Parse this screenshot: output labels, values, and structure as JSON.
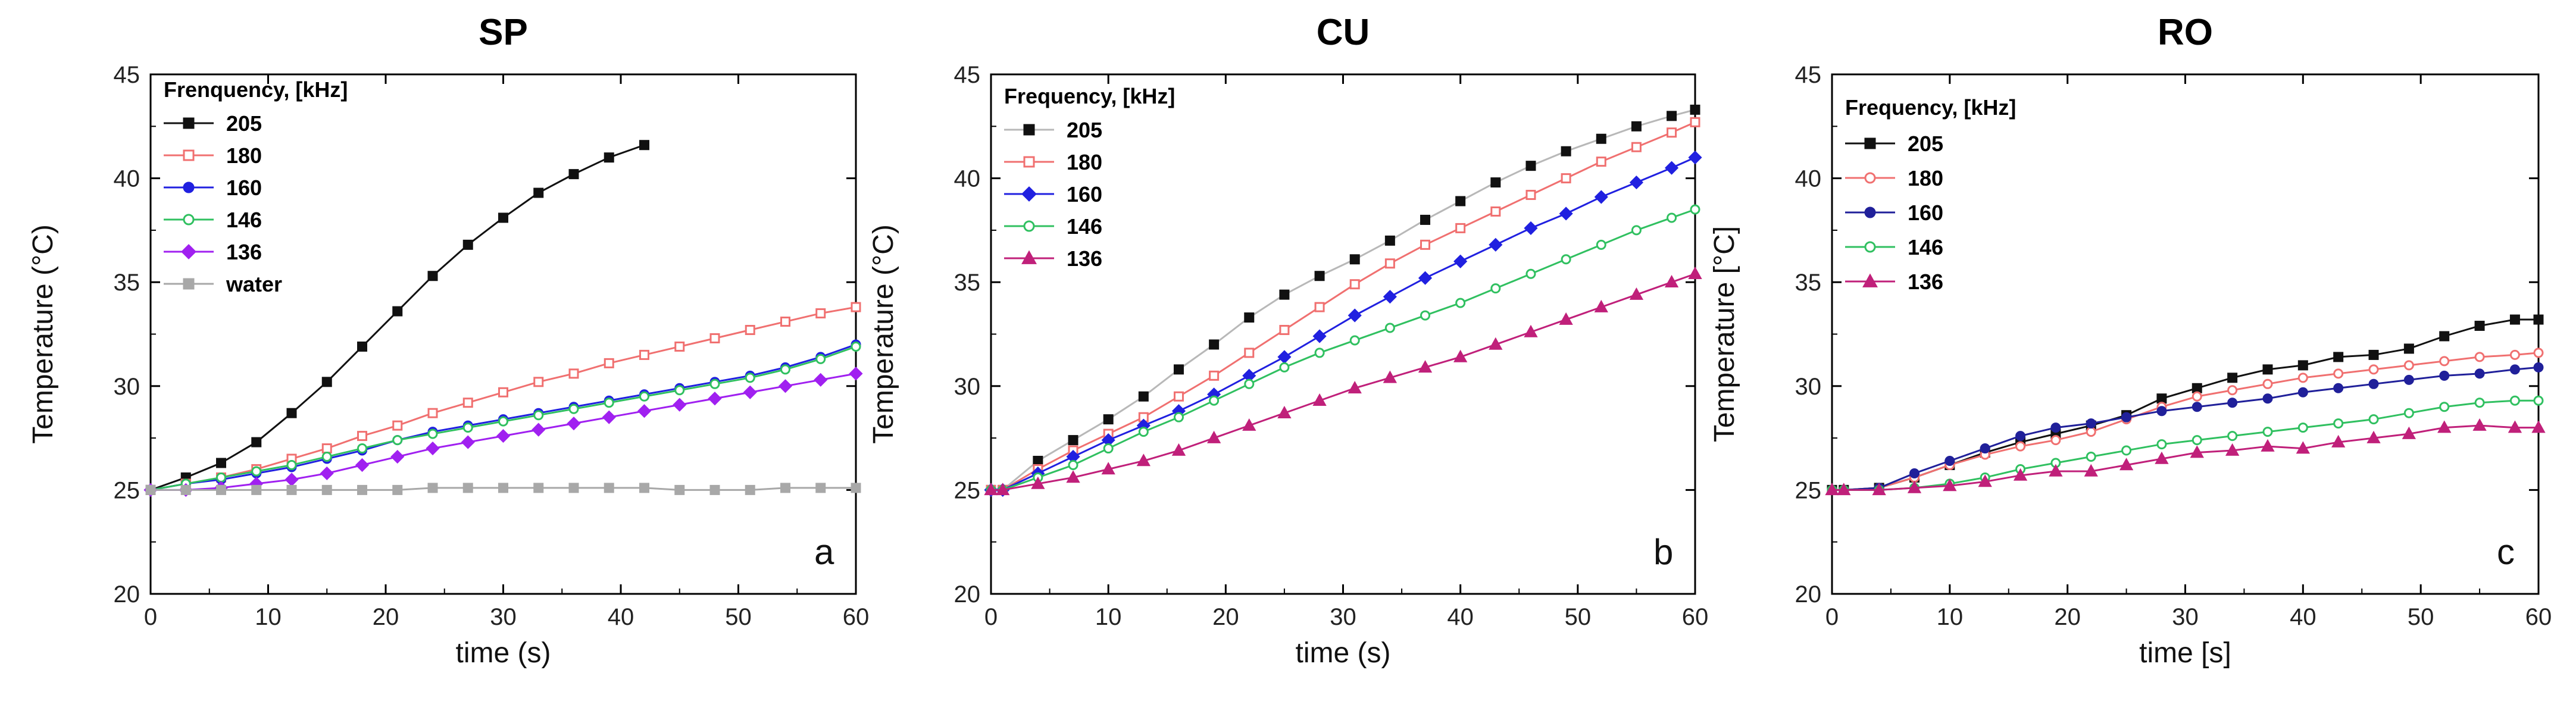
{
  "chart_data": [
    {
      "type": "line",
      "title": "SP",
      "xlabel": "time (s)",
      "ylabel": "Temperature (°C)",
      "xlim": [
        0,
        60
      ],
      "ylim": [
        20,
        45
      ],
      "xticks": [
        0,
        10,
        20,
        30,
        40,
        50,
        60
      ],
      "yticks": [
        20,
        25,
        30,
        35,
        40,
        45
      ],
      "legend_title": "Frenquency, [kHz]",
      "panel_label": "a",
      "series": [
        {
          "name": "205",
          "color": "#111111",
          "marker": "square",
          "filled": true,
          "x": [
            0,
            3,
            6,
            9,
            12,
            15,
            18,
            21,
            24,
            27,
            30,
            33,
            36,
            39,
            42
          ],
          "y": [
            25.0,
            25.6,
            26.3,
            27.3,
            28.7,
            30.2,
            31.9,
            33.6,
            35.3,
            36.8,
            38.1,
            39.3,
            40.2,
            41.0,
            41.6
          ]
        },
        {
          "name": "180",
          "color": "#f07070",
          "marker": "square",
          "filled": false,
          "x": [
            0,
            3,
            6,
            9,
            12,
            15,
            18,
            21,
            24,
            27,
            30,
            33,
            36,
            39,
            42,
            45,
            48,
            51,
            54,
            57,
            60
          ],
          "y": [
            25.0,
            25.3,
            25.6,
            26.0,
            26.5,
            27.0,
            27.6,
            28.1,
            28.7,
            29.2,
            29.7,
            30.2,
            30.6,
            31.1,
            31.5,
            31.9,
            32.3,
            32.7,
            33.1,
            33.5,
            33.8
          ]
        },
        {
          "name": "160",
          "color": "#2020e0",
          "marker": "circle",
          "filled": true,
          "x": [
            0,
            3,
            6,
            9,
            12,
            15,
            18,
            21,
            24,
            27,
            30,
            33,
            36,
            39,
            42,
            45,
            48,
            51,
            54,
            57,
            60
          ],
          "y": [
            25.0,
            25.3,
            25.5,
            25.8,
            26.1,
            26.5,
            26.9,
            27.4,
            27.8,
            28.1,
            28.4,
            28.7,
            29.0,
            29.3,
            29.6,
            29.9,
            30.2,
            30.5,
            30.9,
            31.4,
            32.0
          ]
        },
        {
          "name": "146",
          "color": "#30c060",
          "marker": "circle",
          "filled": false,
          "x": [
            0,
            3,
            6,
            9,
            12,
            15,
            18,
            21,
            24,
            27,
            30,
            33,
            36,
            39,
            42,
            45,
            48,
            51,
            54,
            57,
            60
          ],
          "y": [
            25.0,
            25.3,
            25.6,
            25.9,
            26.2,
            26.6,
            27.0,
            27.4,
            27.7,
            28.0,
            28.3,
            28.6,
            28.9,
            29.2,
            29.5,
            29.8,
            30.1,
            30.4,
            30.8,
            31.3,
            31.9
          ]
        },
        {
          "name": "136",
          "color": "#a020f0",
          "marker": "diamond",
          "filled": true,
          "x": [
            0,
            3,
            6,
            9,
            12,
            15,
            18,
            21,
            24,
            27,
            30,
            33,
            36,
            39,
            42,
            45,
            48,
            51,
            54,
            57,
            60
          ],
          "y": [
            25.0,
            25.0,
            25.1,
            25.3,
            25.5,
            25.8,
            26.2,
            26.6,
            27.0,
            27.3,
            27.6,
            27.9,
            28.2,
            28.5,
            28.8,
            29.1,
            29.4,
            29.7,
            30.0,
            30.3,
            30.6
          ]
        },
        {
          "name": "water",
          "color": "#a8a8a8",
          "marker": "square",
          "filled": true,
          "x": [
            0,
            3,
            6,
            9,
            12,
            15,
            18,
            21,
            24,
            27,
            30,
            33,
            36,
            39,
            42,
            45,
            48,
            51,
            54,
            57,
            60
          ],
          "y": [
            25.0,
            25.0,
            25.0,
            25.0,
            25.0,
            25.0,
            25.0,
            25.0,
            25.1,
            25.1,
            25.1,
            25.1,
            25.1,
            25.1,
            25.1,
            25.0,
            25.0,
            25.0,
            25.1,
            25.1,
            25.1
          ]
        }
      ]
    },
    {
      "type": "line",
      "title": "CU",
      "xlabel": "time (s)",
      "ylabel": "Temperature (°C)",
      "xlim": [
        0,
        60
      ],
      "ylim": [
        20,
        45
      ],
      "xticks": [
        0,
        10,
        20,
        30,
        40,
        50,
        60
      ],
      "yticks": [
        20,
        25,
        30,
        35,
        40,
        45
      ],
      "legend_title": "Frequency, [kHz]",
      "panel_label": "b",
      "series": [
        {
          "name": "205",
          "color": "#b8b8b8",
          "marker": "square",
          "filled": true,
          "marker_color": "#111111",
          "x": [
            0,
            1,
            4,
            7,
            10,
            13,
            16,
            19,
            22,
            25,
            28,
            31,
            34,
            37,
            40,
            43,
            46,
            49,
            52,
            55,
            58,
            60
          ],
          "y": [
            25.0,
            25.0,
            26.4,
            27.4,
            28.4,
            29.5,
            30.8,
            32.0,
            33.3,
            34.4,
            35.3,
            36.1,
            37.0,
            38.0,
            38.9,
            39.8,
            40.6,
            41.3,
            41.9,
            42.5,
            43.0,
            43.3
          ]
        },
        {
          "name": "180",
          "color": "#f07070",
          "marker": "square",
          "filled": false,
          "x": [
            0,
            1,
            4,
            7,
            10,
            13,
            16,
            19,
            22,
            25,
            28,
            31,
            34,
            37,
            40,
            43,
            46,
            49,
            52,
            55,
            58,
            60
          ],
          "y": [
            25.0,
            25.0,
            26.0,
            26.9,
            27.7,
            28.5,
            29.5,
            30.5,
            31.6,
            32.7,
            33.8,
            34.9,
            35.9,
            36.8,
            37.6,
            38.4,
            39.2,
            40.0,
            40.8,
            41.5,
            42.2,
            42.7
          ]
        },
        {
          "name": "160",
          "color": "#2020e0",
          "marker": "diamond",
          "filled": true,
          "x": [
            0,
            1,
            4,
            7,
            10,
            13,
            16,
            19,
            22,
            25,
            28,
            31,
            34,
            37,
            40,
            43,
            46,
            49,
            52,
            55,
            58,
            60
          ],
          "y": [
            25.0,
            25.0,
            25.8,
            26.6,
            27.4,
            28.1,
            28.8,
            29.6,
            30.5,
            31.4,
            32.4,
            33.4,
            34.3,
            35.2,
            36.0,
            36.8,
            37.6,
            38.3,
            39.1,
            39.8,
            40.5,
            41.0
          ]
        },
        {
          "name": "146",
          "color": "#30c060",
          "marker": "circle",
          "filled": false,
          "x": [
            0,
            1,
            4,
            7,
            10,
            13,
            16,
            19,
            22,
            25,
            28,
            31,
            34,
            37,
            40,
            43,
            46,
            49,
            52,
            55,
            58,
            60
          ],
          "y": [
            25.0,
            25.0,
            25.6,
            26.2,
            27.0,
            27.8,
            28.5,
            29.3,
            30.1,
            30.9,
            31.6,
            32.2,
            32.8,
            33.4,
            34.0,
            34.7,
            35.4,
            36.1,
            36.8,
            37.5,
            38.1,
            38.5
          ]
        },
        {
          "name": "136",
          "color": "#c0207a",
          "marker": "triangle",
          "filled": true,
          "x": [
            0,
            1,
            4,
            7,
            10,
            13,
            16,
            19,
            22,
            25,
            28,
            31,
            34,
            37,
            40,
            43,
            46,
            49,
            52,
            55,
            58,
            60
          ],
          "y": [
            25.0,
            25.0,
            25.3,
            25.6,
            26.0,
            26.4,
            26.9,
            27.5,
            28.1,
            28.7,
            29.3,
            29.9,
            30.4,
            30.9,
            31.4,
            32.0,
            32.6,
            33.2,
            33.8,
            34.4,
            35.0,
            35.4
          ]
        }
      ]
    },
    {
      "type": "line",
      "title": "RO",
      "xlabel": "time [s]",
      "ylabel": "Temperature [°C]",
      "xlim": [
        0,
        60
      ],
      "ylim": [
        20,
        45
      ],
      "xticks": [
        0,
        10,
        20,
        30,
        40,
        50,
        60
      ],
      "yticks": [
        20,
        25,
        30,
        35,
        40,
        45
      ],
      "legend_title": "Frequency, [kHz]",
      "panel_label": "c",
      "series": [
        {
          "name": "205",
          "color": "#111111",
          "marker": "square",
          "filled": true,
          "x": [
            0,
            1,
            4,
            7,
            10,
            13,
            16,
            19,
            22,
            25,
            28,
            31,
            34,
            37,
            40,
            43,
            46,
            49,
            52,
            55,
            58,
            60
          ],
          "y": [
            25.0,
            25.0,
            25.1,
            25.6,
            26.2,
            26.8,
            27.3,
            27.7,
            28.1,
            28.6,
            29.4,
            29.9,
            30.4,
            30.8,
            31.0,
            31.4,
            31.5,
            31.8,
            32.4,
            32.9,
            33.2,
            33.2
          ]
        },
        {
          "name": "180",
          "color": "#f07070",
          "marker": "circle",
          "filled": false,
          "x": [
            0,
            1,
            4,
            7,
            10,
            13,
            16,
            19,
            22,
            25,
            28,
            31,
            34,
            37,
            40,
            43,
            46,
            49,
            52,
            55,
            58,
            60
          ],
          "y": [
            25.0,
            25.0,
            25.1,
            25.6,
            26.2,
            26.7,
            27.1,
            27.4,
            27.8,
            28.4,
            29.0,
            29.5,
            29.8,
            30.1,
            30.4,
            30.6,
            30.8,
            31.0,
            31.2,
            31.4,
            31.5,
            31.6
          ]
        },
        {
          "name": "160",
          "color": "#20209a",
          "marker": "circle",
          "filled": true,
          "x": [
            0,
            1,
            4,
            7,
            10,
            13,
            16,
            19,
            22,
            25,
            28,
            31,
            34,
            37,
            40,
            43,
            46,
            49,
            52,
            55,
            58,
            60
          ],
          "y": [
            25.0,
            25.0,
            25.1,
            25.8,
            26.4,
            27.0,
            27.6,
            28.0,
            28.2,
            28.5,
            28.8,
            29.0,
            29.2,
            29.4,
            29.7,
            29.9,
            30.1,
            30.3,
            30.5,
            30.6,
            30.8,
            30.9
          ]
        },
        {
          "name": "146",
          "color": "#30c060",
          "marker": "circle",
          "filled": false,
          "x": [
            0,
            1,
            4,
            7,
            10,
            13,
            16,
            19,
            22,
            25,
            28,
            31,
            34,
            37,
            40,
            43,
            46,
            49,
            52,
            55,
            58,
            60
          ],
          "y": [
            25.0,
            25.0,
            25.0,
            25.1,
            25.3,
            25.6,
            26.0,
            26.3,
            26.6,
            26.9,
            27.2,
            27.4,
            27.6,
            27.8,
            28.0,
            28.2,
            28.4,
            28.7,
            29.0,
            29.2,
            29.3,
            29.3
          ]
        },
        {
          "name": "136",
          "color": "#c0207a",
          "marker": "triangle",
          "filled": true,
          "x": [
            0,
            1,
            4,
            7,
            10,
            13,
            16,
            19,
            22,
            25,
            28,
            31,
            34,
            37,
            40,
            43,
            46,
            49,
            52,
            55,
            58,
            60
          ],
          "y": [
            25.0,
            25.0,
            25.0,
            25.1,
            25.2,
            25.4,
            25.7,
            25.9,
            25.9,
            26.2,
            26.5,
            26.8,
            26.9,
            27.1,
            27.0,
            27.3,
            27.5,
            27.7,
            28.0,
            28.1,
            28.0,
            28.0
          ]
        }
      ]
    }
  ]
}
